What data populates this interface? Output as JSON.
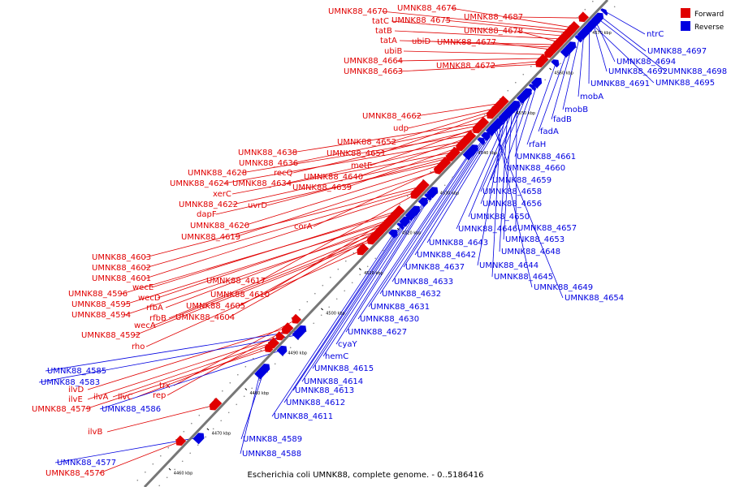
{
  "caption": "Escherichia coli UMNK88, complete genome. - 0..5186416",
  "legend": [
    {
      "label": "Forward",
      "color": "#e00000"
    },
    {
      "label": "Reverse",
      "color": "#0000e0"
    }
  ],
  "colors": {
    "forward": "#e00000",
    "reverse": "#0000e0",
    "axis": "#777777"
  },
  "ticks": [
    "4460 kbp",
    "4470 kbp",
    "4480 kbp",
    "4490 kbp",
    "4500 kbp",
    "4510 kbp",
    "4520 kbp",
    "4530 kbp",
    "4540 kbp",
    "4550 kbp",
    "4560 kbp",
    "4570 kbp"
  ],
  "forward_genes": [
    "UMNK88_4670",
    "UMNK88_4676",
    "tatC",
    "UMNK88_4675",
    "UMNK88_4687",
    "tatB",
    "UMNK88_4678",
    "tatA",
    "ubiD",
    "UMNK88_4677",
    "ubiB",
    "UMNK88_4664",
    "UMNK88_4672",
    "UMNK88_4663",
    "UMNK88_4662",
    "udp",
    "UMNK88_4652",
    "UMNK88_4651",
    "UMNK88_4638",
    "UMNK88_4636",
    "metE",
    "recQ",
    "UMNK88_4628",
    "UMNK88_4640",
    "UMNK88_4624",
    "UMNK88_4634",
    "UMNK88_4639",
    "xerC",
    "UMNK88_4622",
    "uvrD",
    "dapF",
    "UMNK88_4620",
    "corA",
    "UMNK88_4619",
    "UMNK88_4603",
    "UMNK88_4602",
    "UMNK88_4601",
    "UMNK88_4617",
    "wecE",
    "UMNK88_4596",
    "UMNK88_4610",
    "wecD",
    "UMNK88_4595",
    "rfbA",
    "UMNK88_4605",
    "UMNK88_4594",
    "rfbB",
    "UMNK88_4604",
    "wecA",
    "UMNK88_4592",
    "rho",
    "trx",
    "ilvD",
    "rep",
    "ilvE",
    "ilvA",
    "ilvC",
    "UMNK88_4579",
    "ilvB",
    "UMNK88_4576"
  ],
  "reverse_genes": [
    "ntrC",
    "UMNK88_4697",
    "UMNK88_4694",
    "UMNK88_4692",
    "UMNK88_4698",
    "UMNK88_4691",
    "UMNK88_4695",
    "mobA",
    "mobB",
    "fadB",
    "fadA",
    "rfaH",
    "UMNK88_4661",
    "UMNK88_4660",
    "UMNK88_4659",
    "UMNK88_4658",
    "UMNK88_4656",
    "UMNK88_4650",
    "UMNK88_4646",
    "UMNK88_4657",
    "UMNK88_4653",
    "UMNK88_4643",
    "UMNK88_4648",
    "UMNK88_4642",
    "UMNK88_4644",
    "UMNK88_4637",
    "UMNK88_4645",
    "UMNK88_4633",
    "UMNK88_4649",
    "UMNK88_4632",
    "UMNK88_4654",
    "UMNK88_4631",
    "UMNK88_4630",
    "UMNK88_4627",
    "cyaY",
    "hemC",
    "UMNK88_4615",
    "UMNK88_4614",
    "UMNK88_4613",
    "UMNK88_4612",
    "UMNK88_4611",
    "UMNK88_4585",
    "UMNK88_4583",
    "UMNK88_4586",
    "UMNK88_4589",
    "UMNK88_4588",
    "UMNK88_4577"
  ]
}
